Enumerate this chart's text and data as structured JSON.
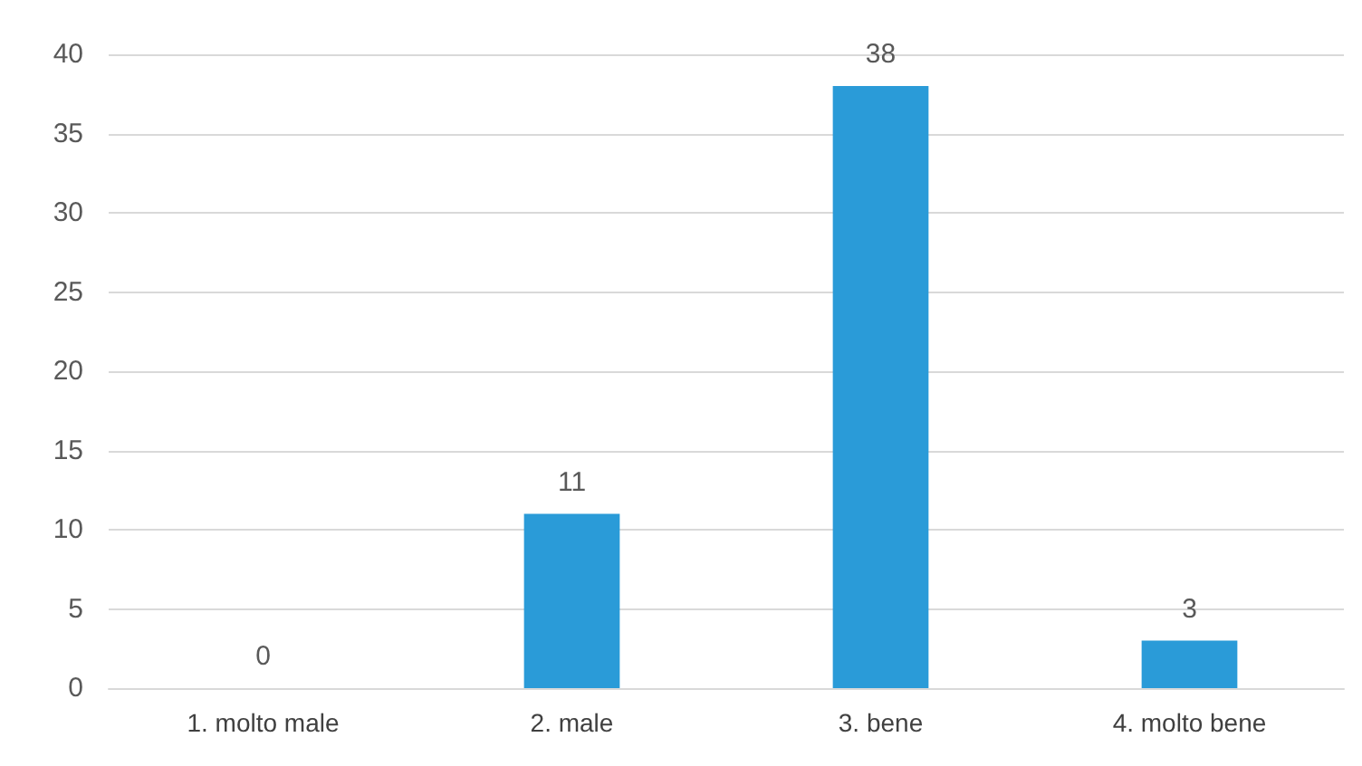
{
  "chart_data": {
    "type": "bar",
    "categories": [
      "1. molto male",
      "2. male",
      "3. bene",
      "4. molto bene"
    ],
    "values": [
      0,
      11,
      38,
      3
    ],
    "color": "#2a9bd8",
    "ylim": [
      0,
      40
    ],
    "yticks": [
      0,
      5,
      10,
      15,
      20,
      25,
      30,
      35,
      40
    ],
    "grid": "y",
    "data_labels": true
  }
}
